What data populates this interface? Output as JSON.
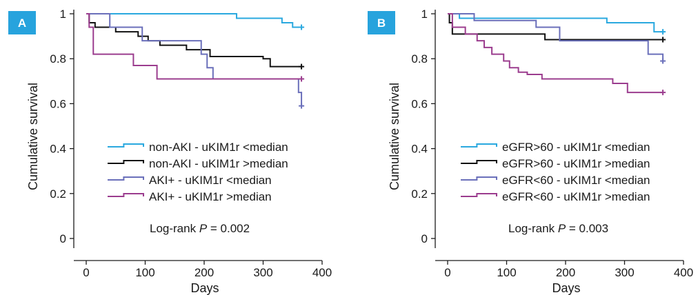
{
  "chart_data": [
    {
      "type": "line",
      "panel_label": "A",
      "xlabel": "Days",
      "ylabel": "Cumulative survival",
      "xlim": [
        0,
        400
      ],
      "ylim": [
        0,
        1
      ],
      "xticks": [
        "0",
        "100",
        "200",
        "300",
        "400"
      ],
      "yticks": [
        "0",
        "0.2",
        "0.4",
        "0.6",
        "0.8",
        "1"
      ],
      "xtick_values": [
        0,
        100,
        200,
        300,
        400
      ],
      "ytick_values": [
        0,
        0.2,
        0.4,
        0.6,
        0.8,
        1
      ],
      "annotation": {
        "prefix": "Log-rank ",
        "symbol": "P",
        "suffix": " = 0.002"
      },
      "legend_position": "center-right",
      "series": [
        {
          "name": "non-AKI - uKIM1r <median",
          "color": "#29a8df",
          "censor": true,
          "x": [
            0,
            255,
            332,
            350,
            365
          ],
          "y": [
            1,
            0.98,
            0.96,
            0.94,
            0.94
          ]
        },
        {
          "name": "non-AKI - uKIM1r >median",
          "color": "#111111",
          "censor": true,
          "x": [
            0,
            5,
            15,
            50,
            88,
            105,
            125,
            170,
            210,
            270,
            300,
            312,
            365
          ],
          "y": [
            1,
            0.96,
            0.94,
            0.92,
            0.9,
            0.88,
            0.86,
            0.84,
            0.81,
            0.81,
            0.8,
            0.765,
            0.765
          ]
        },
        {
          "name": "AKI+ - uKIM1r <median",
          "color": "#6a6fba",
          "censor": true,
          "x": [
            0,
            40,
            95,
            195,
            205,
            215,
            355,
            360,
            365
          ],
          "y": [
            1,
            0.94,
            0.88,
            0.82,
            0.76,
            0.71,
            0.71,
            0.65,
            0.59
          ]
        },
        {
          "name": "AKI+ - uKIM1r >median",
          "color": "#9b3c8e",
          "censor": true,
          "x": [
            0,
            5,
            12,
            80,
            120,
            365
          ],
          "y": [
            1,
            0.94,
            0.82,
            0.77,
            0.71,
            0.71
          ]
        }
      ]
    },
    {
      "type": "line",
      "panel_label": "B",
      "xlabel": "Days",
      "ylabel": "Cumulative survival",
      "xlim": [
        0,
        400
      ],
      "ylim": [
        0,
        1
      ],
      "xticks": [
        "0",
        "100",
        "200",
        "300",
        "400"
      ],
      "yticks": [
        "0",
        "0.2",
        "0.4",
        "0.6",
        "0.8",
        "1"
      ],
      "xtick_values": [
        0,
        100,
        200,
        300,
        400
      ],
      "ytick_values": [
        0,
        0.2,
        0.4,
        0.6,
        0.8,
        1
      ],
      "annotation": {
        "prefix": "Log-rank ",
        "symbol": "P",
        "suffix": " = 0.003"
      },
      "legend_position": "center-right",
      "series": [
        {
          "name": "eGFR>60 - uKIM1r <median",
          "color": "#29a8df",
          "censor": true,
          "x": [
            0,
            20,
            270,
            350,
            365
          ],
          "y": [
            1,
            0.98,
            0.96,
            0.92,
            0.92
          ]
        },
        {
          "name": "eGFR>60 - uKIM1r >median",
          "color": "#111111",
          "censor": true,
          "x": [
            0,
            3,
            8,
            165,
            365
          ],
          "y": [
            1,
            0.96,
            0.91,
            0.885,
            0.885
          ]
        },
        {
          "name": "eGFR<60 - uKIM1r <median",
          "color": "#6a6fba",
          "censor": true,
          "x": [
            0,
            45,
            150,
            190,
            340,
            365
          ],
          "y": [
            1,
            0.97,
            0.94,
            0.88,
            0.82,
            0.79
          ]
        },
        {
          "name": "eGFR<60 - uKIM1r >median",
          "color": "#9b3c8e",
          "censor": true,
          "x": [
            0,
            8,
            30,
            50,
            62,
            75,
            95,
            105,
            120,
            135,
            160,
            280,
            305,
            365
          ],
          "y": [
            1,
            0.94,
            0.91,
            0.88,
            0.85,
            0.82,
            0.79,
            0.76,
            0.74,
            0.73,
            0.71,
            0.69,
            0.65,
            0.65
          ]
        }
      ]
    }
  ]
}
